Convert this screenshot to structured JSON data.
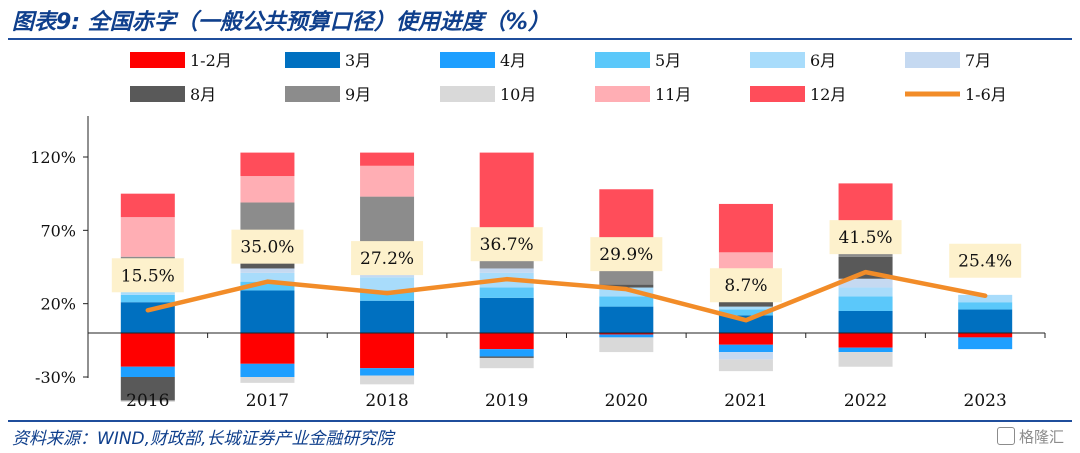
{
  "header": {
    "title_prefix": "图表9:",
    "title_text": "全国赤字（一般公共预算口径）使用进度（%）"
  },
  "footer": {
    "source": "资料来源：WIND,财政部,长城证券产业金融研究院",
    "watermark": "格隆汇"
  },
  "chart_data": {
    "type": "bar",
    "stacked": true,
    "categories": [
      "2016",
      "2017",
      "2018",
      "2019",
      "2020",
      "2021",
      "2022",
      "2023"
    ],
    "ylim": [
      -30,
      150
    ],
    "yticks": [
      -30,
      20,
      70,
      120
    ],
    "ytick_labels": [
      "-30%",
      "20%",
      "70%",
      "120%"
    ],
    "grid": false,
    "legend_position": "top",
    "series": [
      {
        "name": "1-2月",
        "color": "#ff0000",
        "values": [
          -23,
          -21,
          -24,
          -11,
          -1,
          -8,
          -10,
          -3
        ]
      },
      {
        "name": "3月",
        "color": "#0070c0",
        "values": [
          21,
          29,
          22,
          24,
          18,
          12,
          15,
          16
        ]
      },
      {
        "name": "4月",
        "color": "#1e9fff",
        "values": [
          -7,
          -9,
          -5,
          -5,
          -2,
          -5,
          -3,
          -8
        ]
      },
      {
        "name": "5月",
        "color": "#5bc8fa",
        "values": [
          5,
          6,
          7,
          7,
          7,
          4,
          10,
          5
        ]
      },
      {
        "name": "6月",
        "color": "#a8dcfb",
        "values": [
          3,
          6,
          9,
          10,
          6,
          2,
          6,
          5
        ]
      },
      {
        "name": "7月",
        "color": "#c5d9f1",
        "values": [
          0,
          3,
          2,
          3,
          0,
          -5,
          6,
          0
        ]
      },
      {
        "name": "8月",
        "color": "#595959",
        "values": [
          -16,
          16,
          16,
          -1,
          2,
          5,
          15,
          0
        ]
      },
      {
        "name": "9月",
        "color": "#8c8c8c",
        "values": [
          23,
          29,
          37,
          17,
          12,
          13,
          4,
          0
        ]
      },
      {
        "name": "10月",
        "color": "#d9d9d9",
        "values": [
          -1,
          -4,
          -6,
          -7,
          -10,
          -8,
          -10,
          0
        ]
      },
      {
        "name": "11月",
        "color": "#ffaeb4",
        "values": [
          27,
          18,
          21,
          10,
          12,
          19,
          16,
          0
        ]
      },
      {
        "name": "12月",
        "color": "#ff4d5a",
        "values": [
          16,
          16,
          9,
          52,
          41,
          33,
          30,
          0
        ]
      }
    ],
    "line": {
      "name": "1-6月",
      "color": "#f28c28",
      "values": [
        15.5,
        35.0,
        27.2,
        36.7,
        29.9,
        8.7,
        41.5,
        25.4
      ],
      "labels": [
        "15.5%",
        "35.0%",
        "27.2%",
        "36.7%",
        "29.9%",
        "8.7%",
        "41.5%",
        "25.4%"
      ]
    }
  }
}
